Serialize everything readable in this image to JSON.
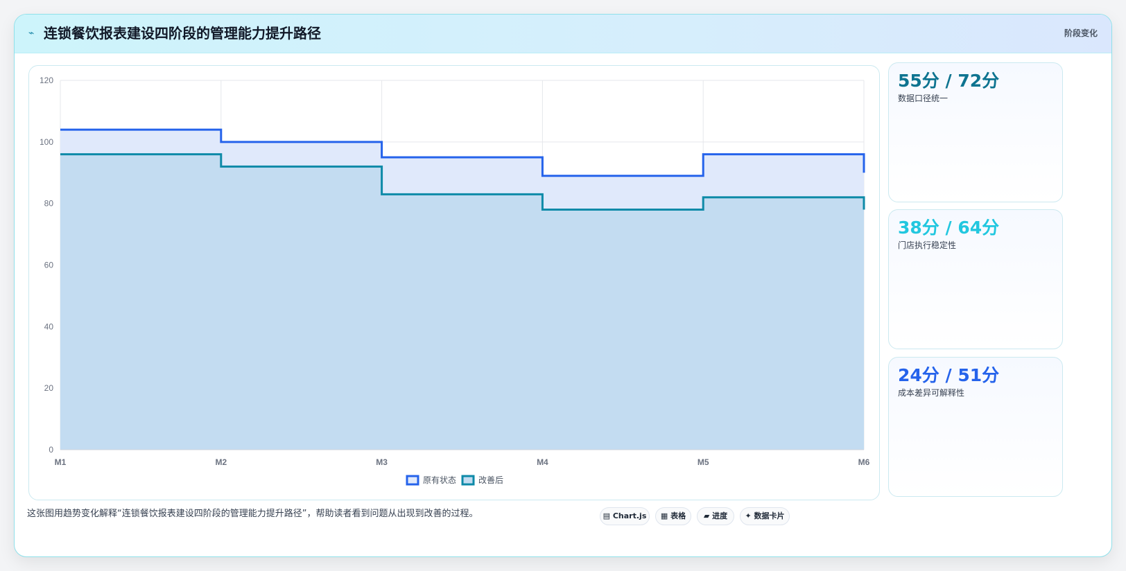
{
  "header": {
    "title": "连锁餐饮报表建设四阶段的管理能力提升路径",
    "badge": "阶段变化",
    "icon": "lightning-icon"
  },
  "cards": [
    {
      "value": "55分 / 72分",
      "label": "数据口径统一",
      "color": "#0e7490"
    },
    {
      "value": "38分 / 64分",
      "label": "门店执行稳定性",
      "color": "#22c7df"
    },
    {
      "value": "24分 / 51分",
      "label": "成本差异可解释性",
      "color": "#2563eb"
    }
  ],
  "caption": "这张图用趋势变化解释“连锁餐饮报表建设四阶段的管理能力提升路径”，帮助读者看到问题从出现到改善的过程。",
  "pills": [
    {
      "icon": "chart-icon",
      "glyph": "▤",
      "label": "Chart.js"
    },
    {
      "icon": "table-icon",
      "glyph": "▦",
      "label": "表格"
    },
    {
      "icon": "progress-icon",
      "glyph": "▰",
      "label": "进度"
    },
    {
      "icon": "sparkle-icon",
      "glyph": "✦",
      "label": "数据卡片"
    }
  ],
  "chart_data": {
    "type": "line",
    "step": "before",
    "categories": [
      "M1",
      "M2",
      "M3",
      "M4",
      "M5",
      "M6"
    ],
    "ylim": [
      0,
      120
    ],
    "yticks": [
      0,
      20,
      40,
      60,
      80,
      100,
      120
    ],
    "grid": true,
    "legend_position": "bottom",
    "series": [
      {
        "name": "原有状态",
        "values": [
          104,
          100,
          95,
          89,
          96,
          90
        ],
        "color": "#2563eb",
        "fill": "#e0e9fb"
      },
      {
        "name": "改善后",
        "values": [
          96,
          92,
          83,
          78,
          82,
          78
        ],
        "color": "#0e8aa8",
        "fill": "#c3dcf1"
      }
    ]
  }
}
